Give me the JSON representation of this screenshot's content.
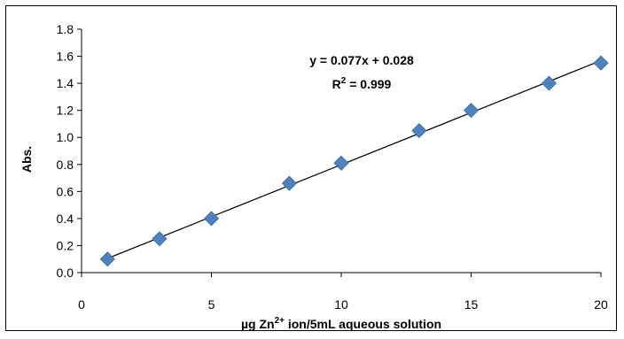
{
  "chart_data": {
    "type": "scatter",
    "title": "",
    "xlabel": {
      "pre": "µg Zn",
      "sup": "2+",
      "post": " ion/5mL aqueous solution"
    },
    "ylabel": "Abs.",
    "xlim": [
      0,
      20
    ],
    "ylim": [
      0,
      1.8
    ],
    "x_ticks": [
      0,
      5,
      10,
      15,
      20
    ],
    "x_tick_labels": [
      "0",
      "5",
      "10",
      "15",
      "20"
    ],
    "y_ticks": [
      0,
      0.2,
      0.4,
      0.6,
      0.8,
      1.0,
      1.2,
      1.4,
      1.6,
      1.8
    ],
    "y_tick_labels": [
      "0.0",
      "0.2",
      "0.4",
      "0.6",
      "0.8",
      "1.0",
      "1.2",
      "1.4",
      "1.6",
      "1.8"
    ],
    "grid": false,
    "series": [
      {
        "x": [
          1,
          3,
          5,
          8,
          10,
          13,
          15,
          18,
          20
        ],
        "y": [
          0.1,
          0.25,
          0.4,
          0.66,
          0.81,
          1.05,
          1.2,
          1.4,
          1.55
        ],
        "color": "#4F81BD",
        "marker": "diamond"
      }
    ],
    "trendline": {
      "type": "linear",
      "slope": 0.077,
      "intercept": 0.028,
      "x_range": [
        1,
        20
      ],
      "color": "#000000"
    },
    "annotations": {
      "equation": "y = 0.077x + 0.028",
      "r2_prefix": "R",
      "r2_sup": "2",
      "r2_suffix": " = 0.999"
    }
  }
}
